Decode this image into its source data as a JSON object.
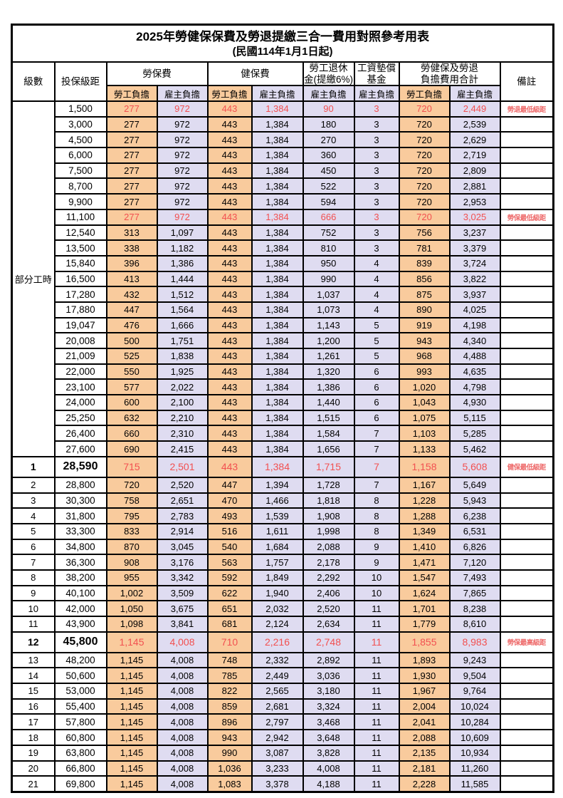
{
  "title": "2025年勞健保保費及勞退提繳三合一費用對照參考用表",
  "subtitle": "(民國114年1月1日起)",
  "columns": {
    "level": "級數",
    "bracket": "投保級距",
    "labor": "勞保費",
    "health": "健保費",
    "pension": "勞工退休\n金(提繳6%)",
    "fund": "工資墊償\n基金",
    "total": "勞健保及勞退\n負擔費用合計",
    "remark": "備註",
    "employee": "勞工負擔",
    "employer": "雇主負擔"
  },
  "group_label": "部分工時",
  "colors": {
    "employee_bg": "#F9CB9D",
    "employer_bg": "#DFDCF1",
    "highlight_text": "#F25050",
    "remark_text": "#EE6B6B"
  },
  "rows": [
    {
      "level": "",
      "bracket": "1,500",
      "v": [
        "277",
        "972",
        "443",
        "1,384",
        "90",
        "3",
        "720",
        "2,449"
      ],
      "remark": "勞退最低級距",
      "red": true,
      "big": false
    },
    {
      "level": "",
      "bracket": "3,000",
      "v": [
        "277",
        "972",
        "443",
        "1,384",
        "180",
        "3",
        "720",
        "2,539"
      ],
      "remark": "",
      "red": false,
      "big": false
    },
    {
      "level": "",
      "bracket": "4,500",
      "v": [
        "277",
        "972",
        "443",
        "1,384",
        "270",
        "3",
        "720",
        "2,629"
      ],
      "remark": "",
      "red": false,
      "big": false
    },
    {
      "level": "",
      "bracket": "6,000",
      "v": [
        "277",
        "972",
        "443",
        "1,384",
        "360",
        "3",
        "720",
        "2,719"
      ],
      "remark": "",
      "red": false,
      "big": false
    },
    {
      "level": "",
      "bracket": "7,500",
      "v": [
        "277",
        "972",
        "443",
        "1,384",
        "450",
        "3",
        "720",
        "2,809"
      ],
      "remark": "",
      "red": false,
      "big": false
    },
    {
      "level": "",
      "bracket": "8,700",
      "v": [
        "277",
        "972",
        "443",
        "1,384",
        "522",
        "3",
        "720",
        "2,881"
      ],
      "remark": "",
      "red": false,
      "big": false
    },
    {
      "level": "",
      "bracket": "9,900",
      "v": [
        "277",
        "972",
        "443",
        "1,384",
        "594",
        "3",
        "720",
        "2,953"
      ],
      "remark": "",
      "red": false,
      "big": false
    },
    {
      "level": "",
      "bracket": "11,100",
      "v": [
        "277",
        "972",
        "443",
        "1,384",
        "666",
        "3",
        "720",
        "3,025"
      ],
      "remark": "勞保最低級距",
      "red": true,
      "big": false
    },
    {
      "level": "",
      "bracket": "12,540",
      "v": [
        "313",
        "1,097",
        "443",
        "1,384",
        "752",
        "3",
        "756",
        "3,237"
      ],
      "remark": "",
      "red": false,
      "big": false
    },
    {
      "level": "",
      "bracket": "13,500",
      "v": [
        "338",
        "1,182",
        "443",
        "1,384",
        "810",
        "3",
        "781",
        "3,379"
      ],
      "remark": "",
      "red": false,
      "big": false
    },
    {
      "level": "",
      "bracket": "15,840",
      "v": [
        "396",
        "1,386",
        "443",
        "1,384",
        "950",
        "4",
        "839",
        "3,724"
      ],
      "remark": "",
      "red": false,
      "big": false
    },
    {
      "level": "",
      "bracket": "16,500",
      "v": [
        "413",
        "1,444",
        "443",
        "1,384",
        "990",
        "4",
        "856",
        "3,822"
      ],
      "remark": "",
      "red": false,
      "big": false
    },
    {
      "level": "",
      "bracket": "17,280",
      "v": [
        "432",
        "1,512",
        "443",
        "1,384",
        "1,037",
        "4",
        "875",
        "3,937"
      ],
      "remark": "",
      "red": false,
      "big": false
    },
    {
      "level": "",
      "bracket": "17,880",
      "v": [
        "447",
        "1,564",
        "443",
        "1,384",
        "1,073",
        "4",
        "890",
        "4,025"
      ],
      "remark": "",
      "red": false,
      "big": false
    },
    {
      "level": "",
      "bracket": "19,047",
      "v": [
        "476",
        "1,666",
        "443",
        "1,384",
        "1,143",
        "5",
        "919",
        "4,198"
      ],
      "remark": "",
      "red": false,
      "big": false
    },
    {
      "level": "",
      "bracket": "20,008",
      "v": [
        "500",
        "1,751",
        "443",
        "1,384",
        "1,200",
        "5",
        "943",
        "4,340"
      ],
      "remark": "",
      "red": false,
      "big": false
    },
    {
      "level": "",
      "bracket": "21,009",
      "v": [
        "525",
        "1,838",
        "443",
        "1,384",
        "1,261",
        "5",
        "968",
        "4,488"
      ],
      "remark": "",
      "red": false,
      "big": false
    },
    {
      "level": "",
      "bracket": "22,000",
      "v": [
        "550",
        "1,925",
        "443",
        "1,384",
        "1,320",
        "6",
        "993",
        "4,635"
      ],
      "remark": "",
      "red": false,
      "big": false
    },
    {
      "level": "",
      "bracket": "23,100",
      "v": [
        "577",
        "2,022",
        "443",
        "1,384",
        "1,386",
        "6",
        "1,020",
        "4,798"
      ],
      "remark": "",
      "red": false,
      "big": false
    },
    {
      "level": "",
      "bracket": "24,000",
      "v": [
        "600",
        "2,100",
        "443",
        "1,384",
        "1,440",
        "6",
        "1,043",
        "4,930"
      ],
      "remark": "",
      "red": false,
      "big": false
    },
    {
      "level": "",
      "bracket": "25,250",
      "v": [
        "632",
        "2,210",
        "443",
        "1,384",
        "1,515",
        "6",
        "1,075",
        "5,115"
      ],
      "remark": "",
      "red": false,
      "big": false
    },
    {
      "level": "",
      "bracket": "26,400",
      "v": [
        "660",
        "2,310",
        "443",
        "1,384",
        "1,584",
        "7",
        "1,103",
        "5,285"
      ],
      "remark": "",
      "red": false,
      "big": false
    },
    {
      "level": "",
      "bracket": "27,600",
      "v": [
        "690",
        "2,415",
        "443",
        "1,384",
        "1,656",
        "7",
        "1,133",
        "5,462"
      ],
      "remark": "",
      "red": false,
      "big": false
    },
    {
      "level": "1",
      "bracket": "28,590",
      "v": [
        "715",
        "2,501",
        "443",
        "1,384",
        "1,715",
        "7",
        "1,158",
        "5,608"
      ],
      "remark": "健保最低級距",
      "red": true,
      "big": true
    },
    {
      "level": "2",
      "bracket": "28,800",
      "v": [
        "720",
        "2,520",
        "447",
        "1,394",
        "1,728",
        "7",
        "1,167",
        "5,649"
      ],
      "remark": "",
      "red": false,
      "big": false
    },
    {
      "level": "3",
      "bracket": "30,300",
      "v": [
        "758",
        "2,651",
        "470",
        "1,466",
        "1,818",
        "8",
        "1,228",
        "5,943"
      ],
      "remark": "",
      "red": false,
      "big": false
    },
    {
      "level": "4",
      "bracket": "31,800",
      "v": [
        "795",
        "2,783",
        "493",
        "1,539",
        "1,908",
        "8",
        "1,288",
        "6,238"
      ],
      "remark": "",
      "red": false,
      "big": false
    },
    {
      "level": "5",
      "bracket": "33,300",
      "v": [
        "833",
        "2,914",
        "516",
        "1,611",
        "1,998",
        "8",
        "1,349",
        "6,531"
      ],
      "remark": "",
      "red": false,
      "big": false
    },
    {
      "level": "6",
      "bracket": "34,800",
      "v": [
        "870",
        "3,045",
        "540",
        "1,684",
        "2,088",
        "9",
        "1,410",
        "6,826"
      ],
      "remark": "",
      "red": false,
      "big": false
    },
    {
      "level": "7",
      "bracket": "36,300",
      "v": [
        "908",
        "3,176",
        "563",
        "1,757",
        "2,178",
        "9",
        "1,471",
        "7,120"
      ],
      "remark": "",
      "red": false,
      "big": false
    },
    {
      "level": "8",
      "bracket": "38,200",
      "v": [
        "955",
        "3,342",
        "592",
        "1,849",
        "2,292",
        "10",
        "1,547",
        "7,493"
      ],
      "remark": "",
      "red": false,
      "big": false
    },
    {
      "level": "9",
      "bracket": "40,100",
      "v": [
        "1,002",
        "3,509",
        "622",
        "1,940",
        "2,406",
        "10",
        "1,624",
        "7,865"
      ],
      "remark": "",
      "red": false,
      "big": false
    },
    {
      "level": "10",
      "bracket": "42,000",
      "v": [
        "1,050",
        "3,675",
        "651",
        "2,032",
        "2,520",
        "11",
        "1,701",
        "8,238"
      ],
      "remark": "",
      "red": false,
      "big": false
    },
    {
      "level": "11",
      "bracket": "43,900",
      "v": [
        "1,098",
        "3,841",
        "681",
        "2,124",
        "2,634",
        "11",
        "1,779",
        "8,610"
      ],
      "remark": "",
      "red": false,
      "big": false
    },
    {
      "level": "12",
      "bracket": "45,800",
      "v": [
        "1,145",
        "4,008",
        "710",
        "2,216",
        "2,748",
        "11",
        "1,855",
        "8,983"
      ],
      "remark": "勞保最高級距",
      "red": true,
      "big": true
    },
    {
      "level": "13",
      "bracket": "48,200",
      "v": [
        "1,145",
        "4,008",
        "748",
        "2,332",
        "2,892",
        "11",
        "1,893",
        "9,243"
      ],
      "remark": "",
      "red": false,
      "big": false
    },
    {
      "level": "14",
      "bracket": "50,600",
      "v": [
        "1,145",
        "4,008",
        "785",
        "2,449",
        "3,036",
        "11",
        "1,930",
        "9,504"
      ],
      "remark": "",
      "red": false,
      "big": false
    },
    {
      "level": "15",
      "bracket": "53,000",
      "v": [
        "1,145",
        "4,008",
        "822",
        "2,565",
        "3,180",
        "11",
        "1,967",
        "9,764"
      ],
      "remark": "",
      "red": false,
      "big": false
    },
    {
      "level": "16",
      "bracket": "55,400",
      "v": [
        "1,145",
        "4,008",
        "859",
        "2,681",
        "3,324",
        "11",
        "2,004",
        "10,024"
      ],
      "remark": "",
      "red": false,
      "big": false
    },
    {
      "level": "17",
      "bracket": "57,800",
      "v": [
        "1,145",
        "4,008",
        "896",
        "2,797",
        "3,468",
        "11",
        "2,041",
        "10,284"
      ],
      "remark": "",
      "red": false,
      "big": false
    },
    {
      "level": "18",
      "bracket": "60,800",
      "v": [
        "1,145",
        "4,008",
        "943",
        "2,942",
        "3,648",
        "11",
        "2,088",
        "10,609"
      ],
      "remark": "",
      "red": false,
      "big": false
    },
    {
      "level": "19",
      "bracket": "63,800",
      "v": [
        "1,145",
        "4,008",
        "990",
        "3,087",
        "3,828",
        "11",
        "2,135",
        "10,934"
      ],
      "remark": "",
      "red": false,
      "big": false
    },
    {
      "level": "20",
      "bracket": "66,800",
      "v": [
        "1,145",
        "4,008",
        "1,036",
        "3,233",
        "4,008",
        "11",
        "2,181",
        "11,260"
      ],
      "remark": "",
      "red": false,
      "big": false
    },
    {
      "level": "21",
      "bracket": "69,800",
      "v": [
        "1,145",
        "4,008",
        "1,083",
        "3,378",
        "4,188",
        "11",
        "2,228",
        "11,585"
      ],
      "remark": "",
      "red": false,
      "big": false
    }
  ],
  "fee_col_styles": [
    "emp",
    "er",
    "emp",
    "er",
    "er",
    "er",
    "emp",
    "er"
  ]
}
